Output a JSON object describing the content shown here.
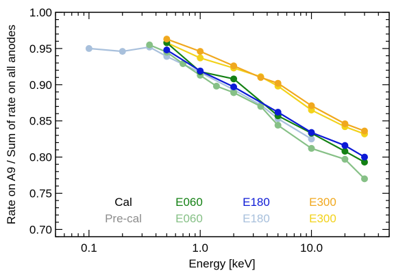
{
  "chart_data": {
    "type": "line",
    "xlabel": "Energy [keV]",
    "ylabel": "Rate on A9 / Sum of rate on all anodes",
    "xscale": "log",
    "xlim": [
      0.05,
      50
    ],
    "ylim": [
      0.69,
      1.0
    ],
    "x_ticks": [
      {
        "value": 0.1,
        "label": "0.1"
      },
      {
        "value": 1.0,
        "label": "1.0"
      },
      {
        "value": 10.0,
        "label": "10.0"
      }
    ],
    "y_ticks": [
      {
        "value": 0.7,
        "label": "0.70"
      },
      {
        "value": 0.75,
        "label": "0.75"
      },
      {
        "value": 0.8,
        "label": "0.80"
      },
      {
        "value": 0.85,
        "label": "0.85"
      },
      {
        "value": 0.9,
        "label": "0.90"
      },
      {
        "value": 0.95,
        "label": "0.95"
      },
      {
        "value": 1.0,
        "label": "1.00"
      }
    ],
    "legend_rows": [
      {
        "label": "Cal",
        "color": "#000000"
      },
      {
        "label": "Pre-cal",
        "color": "#8c8c8c"
      }
    ],
    "series": [
      {
        "name": "E180",
        "group": "Pre-cal",
        "color": "#a8c0dc",
        "x": [
          0.1,
          0.2,
          0.35,
          0.5,
          1.0,
          2.0,
          3.5,
          5.0,
          10.0
        ],
        "y": [
          0.95,
          0.946,
          0.952,
          0.939,
          0.917,
          0.893,
          0.872,
          0.853,
          0.825
        ]
      },
      {
        "name": "E060",
        "group": "Pre-cal",
        "color": "#86c086",
        "x": [
          0.35,
          0.5,
          0.7,
          1.0,
          1.4,
          2.0,
          3.5,
          5.0,
          10.0,
          20.0,
          30.0
        ],
        "y": [
          0.955,
          0.945,
          0.929,
          0.913,
          0.898,
          0.889,
          0.87,
          0.844,
          0.812,
          0.797,
          0.77
        ]
      },
      {
        "name": "E300",
        "group": "Pre-cal",
        "color": "#f2d21a",
        "x": [
          0.5,
          1.0,
          2.0,
          3.5,
          5.0,
          10.0,
          20.0,
          30.0
        ],
        "y": [
          0.958,
          0.937,
          0.923,
          0.911,
          0.898,
          0.865,
          0.842,
          0.832
        ]
      },
      {
        "name": "E060",
        "group": "Cal",
        "color": "#138013",
        "x": [
          0.5,
          1.0,
          2.0,
          5.0,
          10.0,
          20.0,
          30.0
        ],
        "y": [
          0.958,
          0.918,
          0.908,
          0.857,
          0.833,
          0.808,
          0.793
        ]
      },
      {
        "name": "E180",
        "group": "Cal",
        "color": "#0c1ad6",
        "x": [
          0.5,
          1.0,
          2.0,
          5.0,
          10.0,
          20.0,
          30.0
        ],
        "y": [
          0.948,
          0.919,
          0.897,
          0.862,
          0.834,
          0.816,
          0.8
        ]
      },
      {
        "name": "E300",
        "group": "Cal",
        "color": "#f0a81e",
        "x": [
          0.5,
          1.0,
          2.0,
          3.5,
          5.0,
          10.0,
          20.0,
          30.0
        ],
        "y": [
          0.963,
          0.946,
          0.926,
          0.91,
          0.902,
          0.871,
          0.846,
          0.836
        ]
      }
    ],
    "legend": [
      {
        "label": "E060",
        "group": "Cal",
        "color": "#138013"
      },
      {
        "label": "E180",
        "group": "Cal",
        "color": "#0c1ad6"
      },
      {
        "label": "E300",
        "group": "Cal",
        "color": "#f0a81e"
      },
      {
        "label": "E060",
        "group": "Pre-cal",
        "color": "#86c086"
      },
      {
        "label": "E180",
        "group": "Pre-cal",
        "color": "#a8c0dc"
      },
      {
        "label": "E300",
        "group": "Pre-cal",
        "color": "#f2d21a"
      }
    ],
    "legend_position": "bottom-center inside plot",
    "grid": false
  }
}
